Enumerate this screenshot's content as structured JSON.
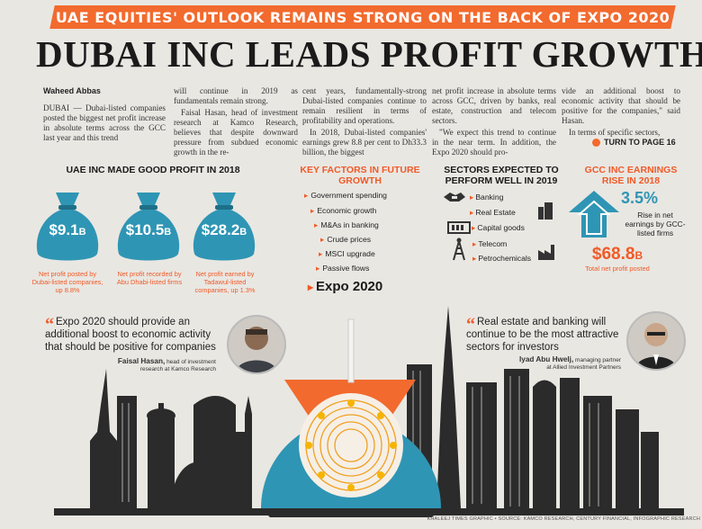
{
  "banner": "UAE EQUITIES' OUTLOOK REMAINS STRONG ON THE BACK OF EXPO 2020",
  "headline": "DUBAI INC LEADS PROFIT GROWTH",
  "article": {
    "byline": "Waheed Abbas",
    "dateline": "DUBAI",
    "col1": "— Dubai-listed companies posted the biggest net profit increase in absolute terms across the GCC last year and this trend",
    "col2a": "will continue in 2019 as fundamentals remain strong.",
    "col2b": "Faisal Hasan, head of investment research at Kamco Research, believes that despite downward pressure from subdued economic growth in the re-",
    "col3a": "cent years, fundamentally-strong Dubai-listed companies continue to remain resilient in terms of profitability and operations.",
    "col3b": "In 2018, Dubai-listed companies' earnings grew 8.8 per cent to Dh33.3 billion, the biggest",
    "col4a": "net profit increase in absolute terms across GCC, driven by banks, real estate, construction and telecom sectors.",
    "col4b": "\"We expect this trend to continue in the near term. In addition, the Expo 2020 should pro-",
    "col5a": "vide an additional boost to economic activity that should be positive for the companies,\" said Hasan.",
    "col5b": "In terms of specific sectors,",
    "turn": "TURN TO PAGE 16"
  },
  "profit": {
    "heading": "UAE INC MADE GOOD PROFIT IN 2018",
    "bags": [
      {
        "value": "$9.1",
        "unit": "B",
        "caption": "Net profit posted by Dubai-listed companies, up 8.8%"
      },
      {
        "value": "$10.5",
        "unit": "B",
        "caption": "Net profit recorded by Abu Dhabi-listed firms"
      },
      {
        "value": "$28.2",
        "unit": "B",
        "caption": "Net profit earned by Tadawul-listed companies, up 1.3%"
      }
    ]
  },
  "factors": {
    "heading": "KEY FACTORS IN FUTURE GROWTH",
    "items": [
      "Government spending",
      "Economic growth",
      "M&As in banking",
      "Crude prices",
      "MSCI upgrade",
      "Passive flows"
    ],
    "highlight": "Expo 2020"
  },
  "sectors": {
    "heading": "SECTORS EXPECTED TO PERFORM WELL IN 2019",
    "items": [
      "Banking",
      "Real Estate",
      "Capital goods",
      "Telecom",
      "Petrochemicals"
    ]
  },
  "gcc": {
    "heading": "GCC INC EARNINGS RISE IN 2018",
    "pct": "3.5%",
    "pct_caption": "Rise in net earnings by GCC-listed firms",
    "total": "$68.8",
    "total_unit": "B",
    "total_caption": "Total net profit posted"
  },
  "quotes": [
    {
      "text": "Expo 2020 should provide an additional boost to economic activity that should be positive for companies",
      "name": "Faisal Hasan,",
      "title1": "head of investment",
      "title2": "research at Kamco Research"
    },
    {
      "text": "Real estate and banking will continue to be the most attractive sectors for investors",
      "name": "Iyad Abu Hwelj,",
      "title1": "managing partner",
      "title2": "at Allied Investment Partners"
    }
  ],
  "credit": "KHALEEJ TIMES GRAPHIC • SOURCE: KAMCO RESEARCH, CENTURY FINANCIAL, INFOGRAPHIC RESEARCH",
  "colors": {
    "accent": "#f26a2e",
    "teal": "#2f95b4",
    "ink": "#1a1a1a"
  }
}
